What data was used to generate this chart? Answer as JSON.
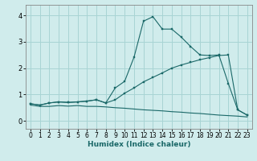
{
  "xlabel": "Humidex (Indice chaleur)",
  "background_color": "#d0ecec",
  "grid_color": "#a8d4d4",
  "line_color": "#1a6868",
  "x_ticks": [
    0,
    1,
    2,
    3,
    4,
    5,
    6,
    7,
    8,
    9,
    10,
    11,
    12,
    13,
    14,
    15,
    16,
    17,
    18,
    19,
    20,
    21,
    22,
    23
  ],
  "xlim": [
    -0.5,
    23.5
  ],
  "ylim": [
    -0.3,
    4.4
  ],
  "y_ticks": [
    0,
    1,
    2,
    3,
    4
  ],
  "line1_x": [
    0,
    1,
    2,
    3,
    4,
    5,
    6,
    7,
    8,
    9,
    10,
    11,
    12,
    13,
    14,
    15,
    16,
    17,
    18,
    19,
    20,
    21,
    22,
    23
  ],
  "line1_y": [
    0.65,
    0.6,
    0.68,
    0.72,
    0.7,
    0.72,
    0.75,
    0.8,
    0.68,
    1.25,
    1.5,
    2.42,
    3.78,
    3.95,
    3.48,
    3.48,
    3.18,
    2.82,
    2.5,
    2.48,
    2.5,
    1.42,
    0.42,
    0.22
  ],
  "line2_x": [
    0,
    1,
    2,
    3,
    4,
    5,
    6,
    7,
    8,
    9,
    10,
    11,
    12,
    13,
    14,
    15,
    16,
    17,
    18,
    19,
    20,
    21,
    22,
    23
  ],
  "line2_y": [
    0.65,
    0.6,
    0.68,
    0.72,
    0.7,
    0.72,
    0.75,
    0.8,
    0.68,
    0.8,
    1.05,
    1.25,
    1.48,
    1.65,
    1.82,
    2.0,
    2.12,
    2.22,
    2.32,
    2.4,
    2.48,
    2.5,
    0.42,
    0.22
  ],
  "line3_x": [
    0,
    1,
    2,
    3,
    4,
    5,
    6,
    7,
    8,
    9,
    10,
    11,
    12,
    13,
    14,
    15,
    16,
    17,
    18,
    19,
    20,
    21,
    22,
    23
  ],
  "line3_y": [
    0.6,
    0.55,
    0.55,
    0.58,
    0.56,
    0.58,
    0.55,
    0.55,
    0.53,
    0.5,
    0.48,
    0.45,
    0.42,
    0.4,
    0.38,
    0.35,
    0.33,
    0.3,
    0.28,
    0.25,
    0.22,
    0.2,
    0.18,
    0.15
  ]
}
